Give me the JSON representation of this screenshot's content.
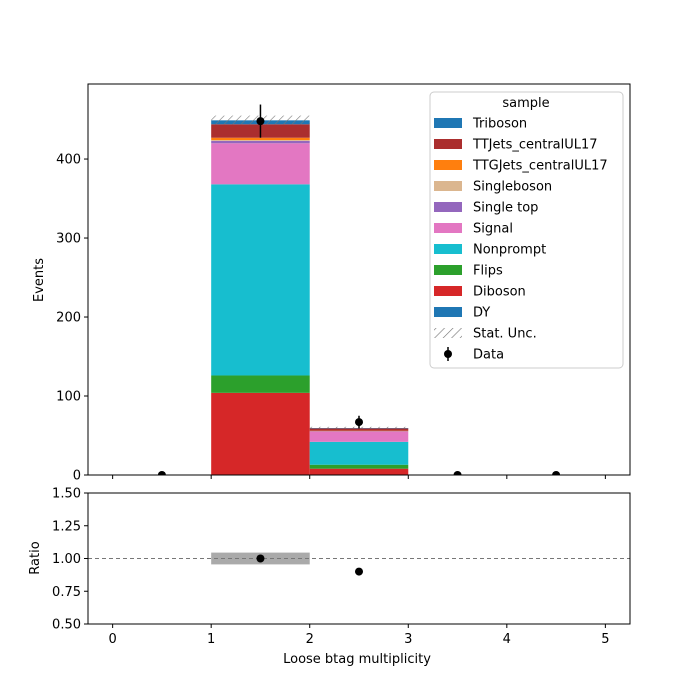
{
  "chart_data": [
    {
      "type": "bar",
      "stacked": true,
      "xlabel": "",
      "ylabel": "Events",
      "xlim": [
        -0.25,
        5.25
      ],
      "ylim": [
        0,
        495
      ],
      "yticks": [
        0,
        100,
        200,
        300,
        400
      ],
      "bins": [
        [
          0,
          1
        ],
        [
          1,
          2
        ],
        [
          2,
          3
        ],
        [
          3,
          4
        ],
        [
          4,
          5
        ]
      ],
      "series": [
        {
          "name": "Diboson",
          "color": "#d62728",
          "values": [
            0,
            104,
            8,
            0,
            0
          ]
        },
        {
          "name": "Flips",
          "color": "#2ca02c",
          "values": [
            0,
            22,
            5,
            0,
            0
          ]
        },
        {
          "name": "Nonprompt",
          "color": "#17becf",
          "values": [
            0,
            242,
            29,
            0,
            0
          ]
        },
        {
          "name": "Signal",
          "color": "#e377c2",
          "values": [
            0,
            52,
            13,
            0,
            0
          ]
        },
        {
          "name": "Single top",
          "color": "#9467bd",
          "values": [
            0,
            3,
            0.5,
            0,
            0
          ]
        },
        {
          "name": "Singleboson",
          "color": "#dbb68f",
          "values": [
            0,
            1,
            0,
            0,
            0
          ]
        },
        {
          "name": "TTGJets_centralUL17",
          "color": "#ff7f0e",
          "values": [
            0,
            3,
            0.5,
            0,
            0
          ]
        },
        {
          "name": "TTJets_centralUL17",
          "color": "#ab2e2e",
          "values": [
            0,
            17,
            3,
            0,
            0
          ]
        },
        {
          "name": "Triboson",
          "color": "#1f77b4",
          "values": [
            0,
            5,
            0.5,
            0,
            0
          ]
        },
        {
          "name": "DY",
          "color": "#1f77b4",
          "values": [
            0,
            0,
            0,
            0,
            0
          ]
        }
      ],
      "stat_unc": {
        "name": "Stat. Unc.",
        "lower": [
          0,
          444,
          59,
          0,
          0
        ],
        "upper": [
          0,
          455,
          61,
          0,
          0
        ]
      },
      "data": {
        "name": "Data",
        "x": [
          0.5,
          1.5,
          2.5,
          3.5,
          4.5
        ],
        "y": [
          0,
          448,
          67,
          0,
          0
        ],
        "err": [
          0,
          21,
          8,
          0,
          0
        ]
      },
      "legend": {
        "title": "sample",
        "placement": "top-right",
        "order": [
          "Triboson",
          "TTJets_centralUL17",
          "TTGJets_centralUL17",
          "Singleboson",
          "Single top",
          "Signal",
          "Nonprompt",
          "Flips",
          "Diboson",
          "DY",
          "Stat. Unc.",
          "Data"
        ]
      }
    },
    {
      "type": "scatter",
      "xlabel": "Loose btag multiplicity",
      "ylabel": "Ratio",
      "xlim": [
        -0.25,
        5.25
      ],
      "ylim": [
        0.5,
        1.5
      ],
      "xticks": [
        0,
        1,
        2,
        3,
        4,
        5
      ],
      "yticks": [
        "0.50",
        "0.75",
        "1.00",
        "1.25",
        "1.50"
      ],
      "reference_line": 1.0,
      "unc_band": {
        "x": [
          1,
          2
        ],
        "lower": 0.955,
        "upper": 1.045
      },
      "points": {
        "x": [
          1.5,
          2.5
        ],
        "y": [
          1.0,
          0.9
        ]
      }
    }
  ]
}
